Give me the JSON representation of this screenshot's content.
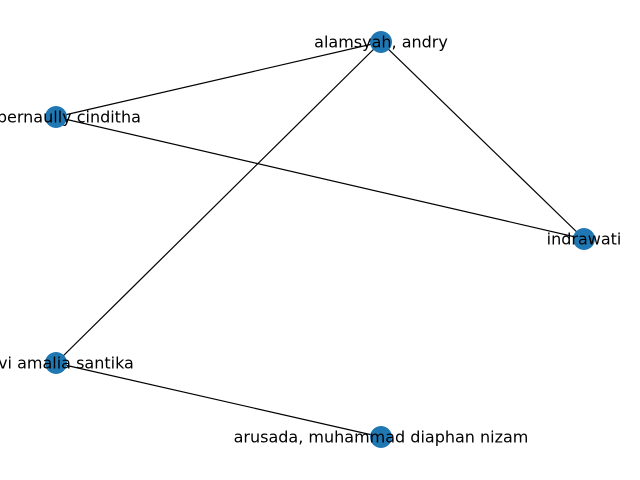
{
  "graph": {
    "node_color": "#1f77b4",
    "edge_color": "#000000",
    "label_color": "#000000",
    "nodes": [
      {
        "id": "alamsyah",
        "label": "alamsyah, andry"
      },
      {
        "id": "bernaully",
        "label": "m, bernaully cinditha"
      },
      {
        "id": "indrawati",
        "label": "indrawati"
      },
      {
        "id": "novi",
        "label": "novi amalia santika"
      },
      {
        "id": "arusada",
        "label": "arusada, muhammad diaphan nizam"
      }
    ],
    "edges": [
      {
        "source": "bernaully",
        "target": "alamsyah"
      },
      {
        "source": "bernaully",
        "target": "indrawati"
      },
      {
        "source": "alamsyah",
        "target": "indrawati"
      },
      {
        "source": "alamsyah",
        "target": "novi"
      },
      {
        "source": "novi",
        "target": "arusada"
      }
    ]
  }
}
